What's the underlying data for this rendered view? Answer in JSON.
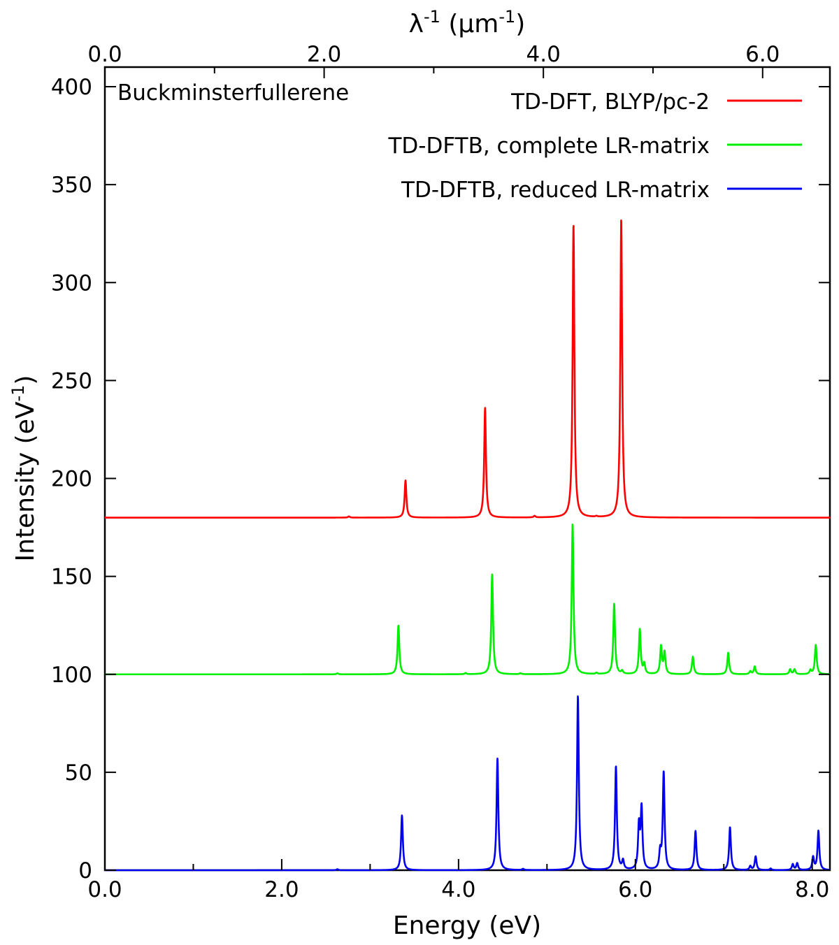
{
  "chart_data": {
    "type": "line",
    "annotation": "Buckminsterfullerene",
    "xlabel": "Energy (eV)",
    "ylabel": "Intensity (eV",
    "ylabel_sup": "-1",
    "ylabel_tail": ")",
    "x2label": "λ",
    "x2label_sup": "-1",
    "x2label_mid": " (µm",
    "x2label_sup2": "-1",
    "x2label_tail": ")",
    "xlim": [
      0,
      8.2
    ],
    "ylim": [
      0,
      410
    ],
    "x_ticks": [
      "0.0",
      "2.0",
      "4.0",
      "6.0",
      "8.0"
    ],
    "x_tick_values": [
      0,
      2,
      4,
      6,
      8
    ],
    "x_minor_values": [
      1,
      3,
      5,
      7
    ],
    "y_ticks": [
      "0",
      "50",
      "100",
      "150",
      "200",
      "250",
      "300",
      "350",
      "400"
    ],
    "y_tick_values": [
      0,
      50,
      100,
      150,
      200,
      250,
      300,
      350,
      400
    ],
    "x2_ticks": [
      "0.0",
      "2.0",
      "4.0",
      "6.0"
    ],
    "x2_tick_values_um": [
      0,
      2,
      4,
      6
    ],
    "x2_minor_values_um": [
      1,
      3,
      5
    ],
    "ev_per_inverse_um": 1.23984,
    "grid": false,
    "legend_position": "top-right",
    "series": [
      {
        "name": "TD-DFT, BLYP/pc-2",
        "color": "#ff0000",
        "baseline": 180,
        "peaks": [
          [
            2.76,
            0.6
          ],
          [
            3.4,
            19
          ],
          [
            4.3,
            56
          ],
          [
            4.86,
            0.8
          ],
          [
            5.3,
            150
          ],
          [
            5.56,
            0.4
          ],
          [
            5.84,
            153
          ]
        ]
      },
      {
        "name": "TD-DFTB, complete LR-matrix",
        "color": "#00ee00",
        "baseline": 100,
        "peaks": [
          [
            2.63,
            0.5
          ],
          [
            3.32,
            25
          ],
          [
            4.08,
            0.6
          ],
          [
            4.38,
            51
          ],
          [
            4.7,
            0.5
          ],
          [
            5.29,
            77
          ],
          [
            5.56,
            0.6
          ],
          [
            5.76,
            36
          ],
          [
            5.85,
            1.5
          ],
          [
            6.05,
            23
          ],
          [
            6.1,
            5
          ],
          [
            6.29,
            14
          ],
          [
            6.33,
            11
          ],
          [
            6.65,
            9
          ],
          [
            7.05,
            11
          ],
          [
            7.3,
            1.5
          ],
          [
            7.35,
            4
          ],
          [
            7.75,
            2.5
          ],
          [
            7.8,
            2.5
          ],
          [
            7.98,
            2
          ],
          [
            8.04,
            15
          ]
        ]
      },
      {
        "name": "TD-DFTB, reduced LR-matrix",
        "color": "#0000ee",
        "baseline": 0,
        "peaks": [
          [
            2.63,
            0.5
          ],
          [
            3.36,
            28
          ],
          [
            4.44,
            57
          ],
          [
            4.73,
            0.6
          ],
          [
            5.35,
            89
          ],
          [
            5.78,
            53
          ],
          [
            5.86,
            4.5
          ],
          [
            6.04,
            22
          ],
          [
            6.07,
            31
          ],
          [
            6.28,
            8.5
          ],
          [
            6.32,
            50
          ],
          [
            6.68,
            20
          ],
          [
            7.07,
            22
          ],
          [
            7.3,
            2
          ],
          [
            7.36,
            7
          ],
          [
            7.53,
            0.8
          ],
          [
            7.78,
            3
          ],
          [
            7.83,
            3.5
          ],
          [
            8.01,
            6.5
          ],
          [
            8.07,
            20
          ]
        ]
      }
    ]
  }
}
